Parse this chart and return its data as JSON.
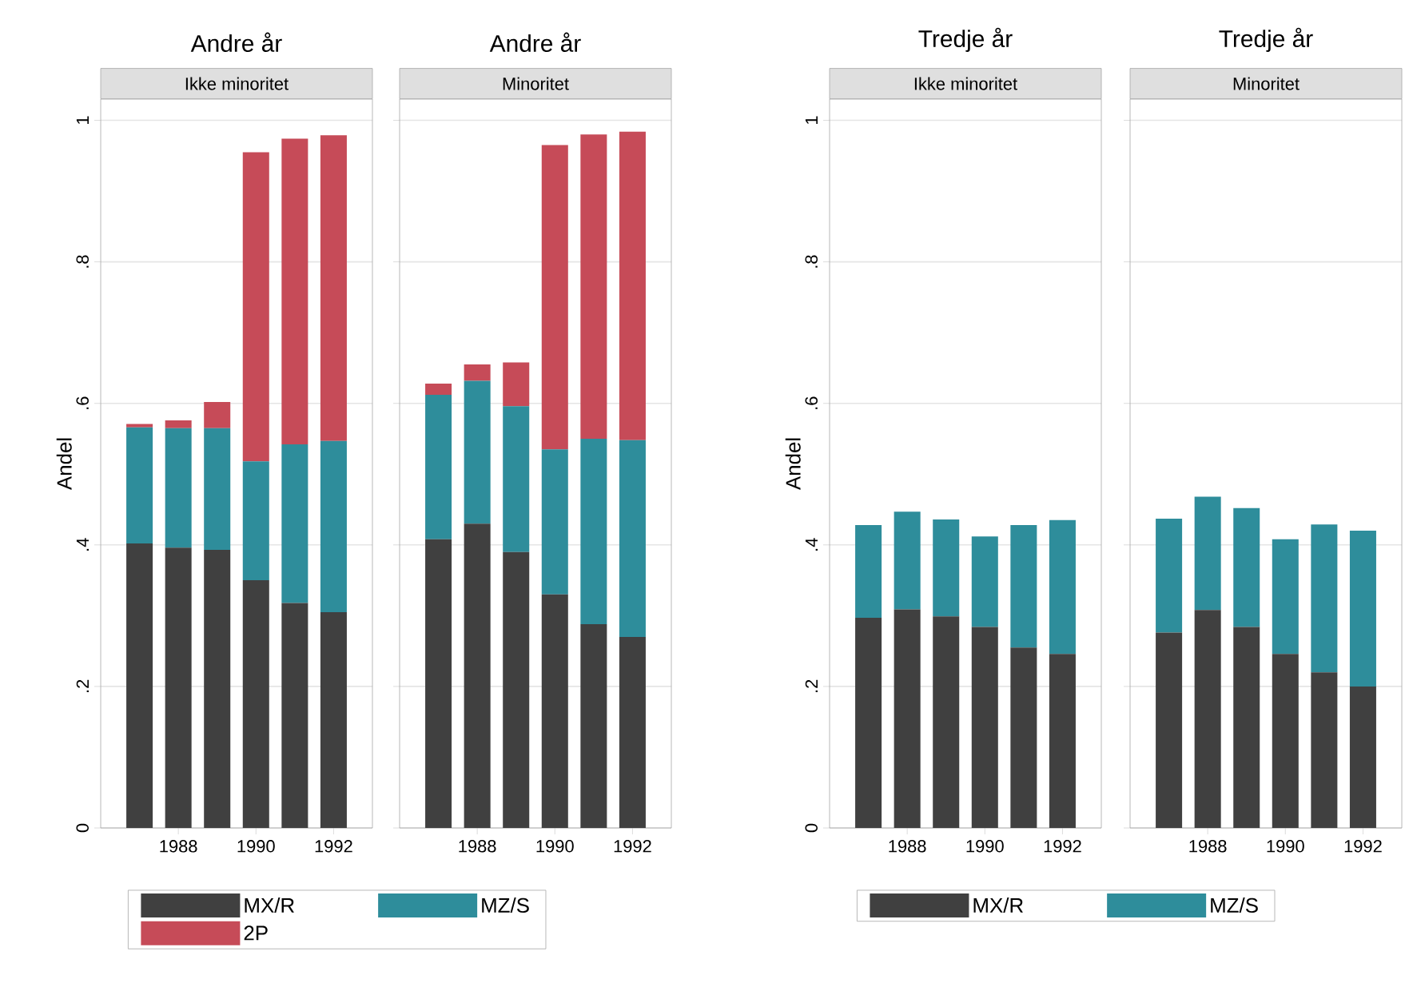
{
  "chart_data": [
    {
      "type": "bar",
      "title": "Andre år",
      "subtitle": "Ikke minoritet",
      "ylabel": "Andel",
      "stacked": true,
      "grid": "y",
      "legend": "bottom",
      "x": [
        1987,
        1988,
        1989,
        1990,
        1991,
        1992
      ],
      "xlim": [
        1986,
        1993
      ],
      "xticks": [
        1988,
        1990,
        1992
      ],
      "ylim": [
        0,
        1.03
      ],
      "yticks": [
        0,
        {
          "value": 0.2,
          "label": ".2"
        },
        {
          "value": 0.4,
          "label": ".4"
        },
        {
          "value": 0.6,
          "label": ".6"
        },
        {
          "value": 0.8,
          "label": ".8"
        },
        1
      ],
      "series": [
        {
          "name": "MX/R",
          "color": "#404040",
          "values": [
            0.402,
            0.396,
            0.393,
            0.35,
            0.318,
            0.305
          ]
        },
        {
          "name": "MZ/S",
          "color": "#2e8d9b",
          "values": [
            0.164,
            0.169,
            0.172,
            0.168,
            0.224,
            0.242
          ]
        },
        {
          "name": "2P",
          "color": "#c64b58",
          "values": [
            0.005,
            0.011,
            0.037,
            0.437,
            0.432,
            0.432
          ]
        }
      ]
    },
    {
      "type": "bar",
      "title": "Andre år",
      "subtitle": "Minoritet",
      "stacked": true,
      "grid": "y",
      "tick_labels": "x",
      "x": [
        1987,
        1988,
        1989,
        1990,
        1991,
        1992
      ],
      "xlim": [
        1986,
        1993
      ],
      "xticks": [
        1988,
        1990,
        1992
      ],
      "ylim": [
        0,
        1.03
      ],
      "yticks": [
        {
          "value": 0,
          "label": null
        },
        {
          "value": 0.2,
          "label": null
        },
        {
          "value": 0.4,
          "label": null
        },
        {
          "value": 0.6,
          "label": null
        },
        {
          "value": 0.8,
          "label": null
        },
        {
          "value": 1,
          "label": null
        }
      ],
      "series": [
        {
          "color": "#404040",
          "values": [
            0.408,
            0.43,
            0.39,
            0.33,
            0.288,
            0.27
          ]
        },
        {
          "color": "#2e8d9b",
          "values": [
            0.204,
            0.202,
            0.206,
            0.205,
            0.262,
            0.278
          ]
        },
        {
          "color": "#c64b58",
          "values": [
            0.016,
            0.023,
            0.062,
            0.43,
            0.43,
            0.436
          ]
        }
      ]
    },
    {
      "type": "bar",
      "title": "Tredje år",
      "subtitle": "Ikke minoritet",
      "ylabel": "Andel",
      "stacked": true,
      "grid": "y",
      "legend": "bottom",
      "x": [
        1987,
        1988,
        1989,
        1990,
        1991,
        1992
      ],
      "xlim": [
        1986,
        1993
      ],
      "xticks": [
        1988,
        1990,
        1992
      ],
      "ylim": [
        0,
        1.03
      ],
      "yticks": [
        0,
        {
          "value": 0.2,
          "label": ".2"
        },
        {
          "value": 0.4,
          "label": ".4"
        },
        {
          "value": 0.6,
          "label": ".6"
        },
        {
          "value": 0.8,
          "label": ".8"
        },
        1
      ],
      "series": [
        {
          "name": "MX/R",
          "color": "#404040",
          "values": [
            0.297,
            0.309,
            0.299,
            0.284,
            0.255,
            0.246
          ]
        },
        {
          "name": "MZ/S",
          "color": "#2e8d9b",
          "values": [
            0.131,
            0.138,
            0.137,
            0.128,
            0.173,
            0.189
          ]
        }
      ]
    },
    {
      "type": "bar",
      "title": "Tredje år",
      "subtitle": "Minoritet",
      "stacked": true,
      "grid": "y",
      "tick_labels": "x",
      "x": [
        1987,
        1988,
        1989,
        1990,
        1991,
        1992
      ],
      "xlim": [
        1986,
        1993
      ],
      "xticks": [
        1988,
        1990,
        1992
      ],
      "ylim": [
        0,
        1.03
      ],
      "yticks": [
        {
          "value": 0,
          "label": null
        },
        {
          "value": 0.2,
          "label": null
        },
        {
          "value": 0.4,
          "label": null
        },
        {
          "value": 0.6,
          "label": null
        },
        {
          "value": 0.8,
          "label": null
        },
        {
          "value": 1,
          "label": null
        }
      ],
      "series": [
        {
          "color": "#404040",
          "values": [
            0.276,
            0.308,
            0.284,
            0.246,
            0.22,
            0.2
          ]
        },
        {
          "color": "#2e8d9b",
          "values": [
            0.161,
            0.16,
            0.168,
            0.162,
            0.209,
            0.22
          ]
        }
      ]
    }
  ]
}
